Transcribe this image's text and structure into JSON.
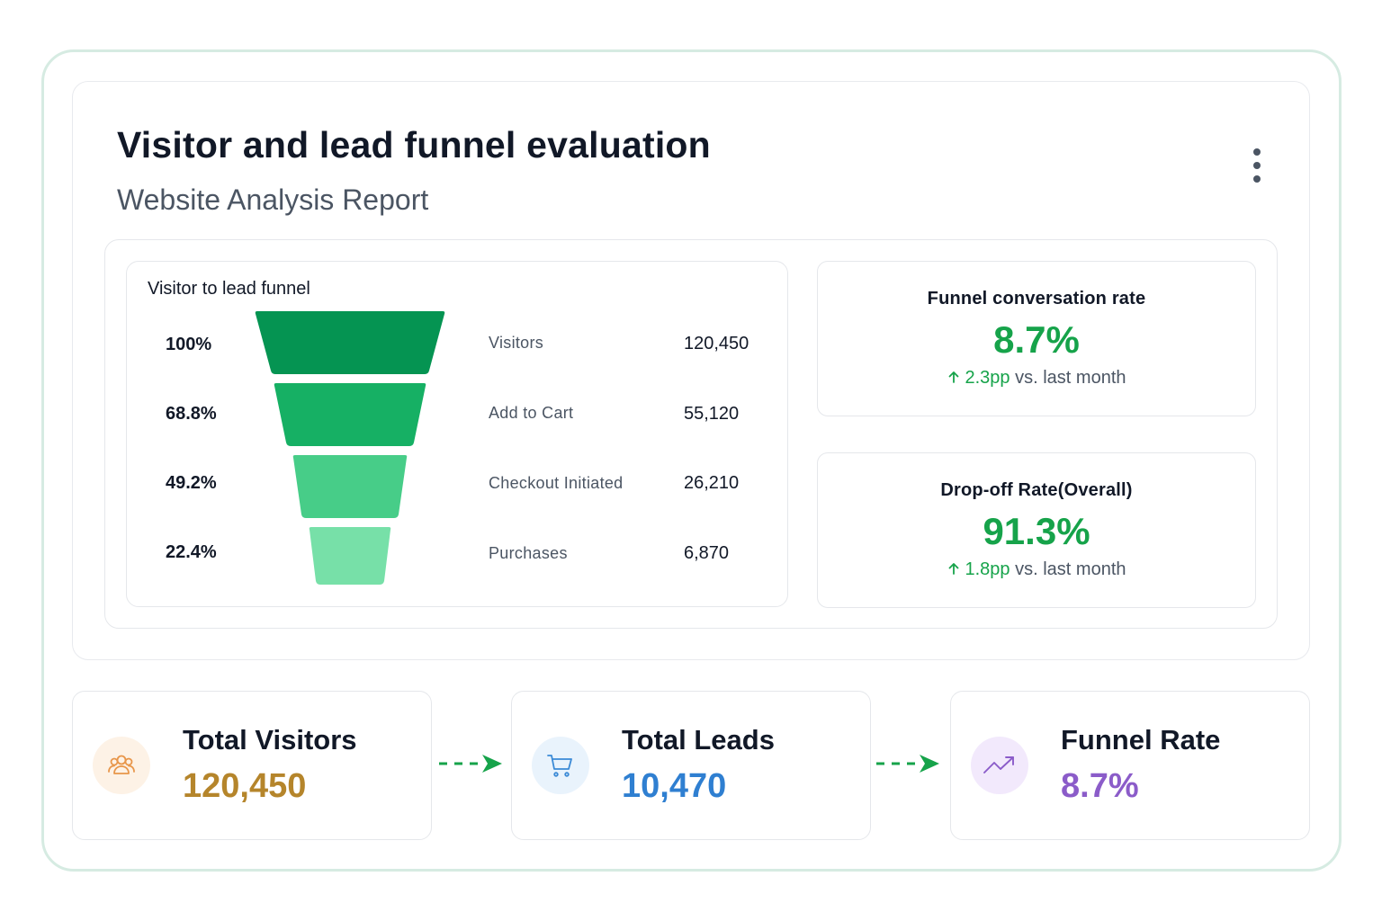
{
  "header": {
    "title": "Visitor and lead funnel evaluation",
    "subtitle": "Website Analysis Report",
    "menu_icon": "more-vertical-icon"
  },
  "funnel": {
    "title": "Visitor to lead funnel",
    "stages": [
      {
        "percent": "100%",
        "label": "Visitors",
        "value": "120,450",
        "color": "#059452"
      },
      {
        "percent": "68.8%",
        "label": "Add to Cart",
        "value": "55,120",
        "color": "#16b064"
      },
      {
        "percent": "49.2%",
        "label": "Checkout Initiated",
        "value": "26,210",
        "color": "#47cd88"
      },
      {
        "percent": "22.4%",
        "label": "Purchases",
        "value": "6,870",
        "color": "#77e0a8"
      }
    ]
  },
  "kpis": {
    "conversion": {
      "title": "Funnel conversation rate",
      "value": "8.7%",
      "delta_icon": "arrow-up-icon",
      "delta_value": "2.3pp",
      "delta_suffix": " vs. last month"
    },
    "dropoff": {
      "title": "Drop-off Rate(Overall)",
      "value": "91.3%",
      "delta_icon": "arrow-up-icon",
      "delta_value": "1.8pp",
      "delta_suffix": " vs. last month"
    }
  },
  "summary": {
    "visitors": {
      "label": "Total Visitors",
      "value": "120,450",
      "icon": "users-icon",
      "color": "#b5852b",
      "icon_bg": "#fdf2e6"
    },
    "leads": {
      "label": "Total Leads",
      "value": "10,470",
      "icon": "shopping-cart-icon",
      "color": "#2f7fd1",
      "icon_bg": "#e9f3fc"
    },
    "rate": {
      "label": "Funnel Rate",
      "value": "8.7%",
      "icon": "trending-up-icon",
      "color": "#8b5cc9",
      "icon_bg": "#f2e9fc"
    }
  },
  "colors": {
    "accent_green": "#16a34a",
    "frame_border": "#d6ebe2"
  }
}
